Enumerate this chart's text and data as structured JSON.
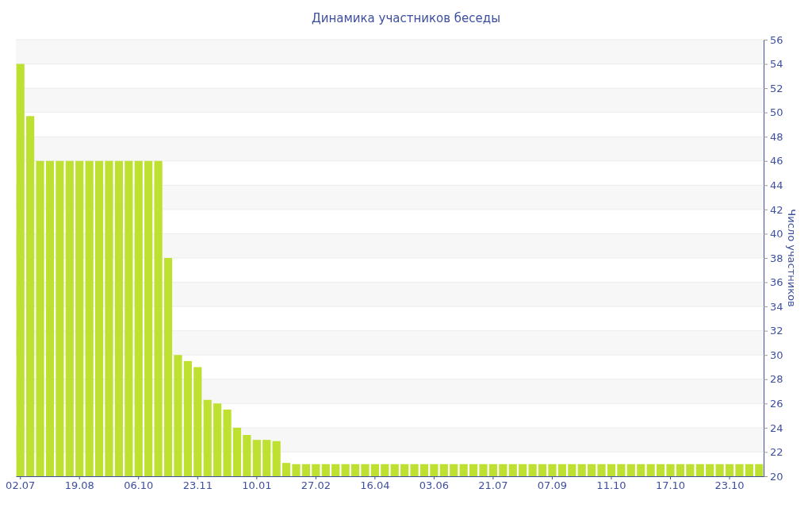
{
  "chart_data": {
    "type": "bar",
    "title": "Динамика участников беседы",
    "ylabel": "Число участников",
    "categories": [
      "02.07",
      null,
      null,
      null,
      null,
      null,
      "19.08",
      null,
      null,
      null,
      null,
      null,
      "06.10",
      null,
      null,
      null,
      null,
      null,
      "23.11",
      null,
      null,
      null,
      null,
      null,
      "10.01",
      null,
      null,
      null,
      null,
      null,
      "27.02",
      null,
      null,
      null,
      null,
      null,
      "16.04",
      null,
      null,
      null,
      null,
      null,
      "03.06",
      null,
      null,
      null,
      null,
      null,
      "21.07",
      null,
      null,
      null,
      null,
      null,
      "07.09",
      null,
      null,
      null,
      null,
      null,
      "11.10",
      null,
      null,
      null,
      null,
      null,
      "17.10",
      null,
      null,
      null,
      null,
      null,
      "23.10",
      null,
      null,
      null
    ],
    "values": [
      54,
      49.7,
      46,
      46,
      46,
      46,
      46,
      46,
      46,
      46,
      46,
      46,
      46,
      46,
      46,
      38,
      30,
      29.5,
      29,
      26.3,
      26,
      25.5,
      24,
      23.4,
      23,
      23,
      22.9,
      21.1,
      21,
      21,
      21,
      21,
      21,
      21,
      21,
      21,
      21,
      21,
      21,
      21,
      21,
      21,
      21,
      21,
      21,
      21,
      21,
      21,
      21,
      21,
      21,
      21,
      21,
      21,
      21,
      21,
      21,
      21,
      21,
      21,
      21,
      21,
      21,
      21,
      21,
      21,
      21,
      21,
      21,
      21,
      21,
      21,
      21,
      21,
      21,
      21
    ],
    "color": "#bde031",
    "ylim": [
      20,
      56
    ],
    "yticks": [
      20,
      22,
      24,
      26,
      28,
      30,
      32,
      34,
      36,
      38,
      40,
      42,
      44,
      46,
      48,
      50,
      52,
      54,
      56
    ],
    "grid": "y"
  }
}
